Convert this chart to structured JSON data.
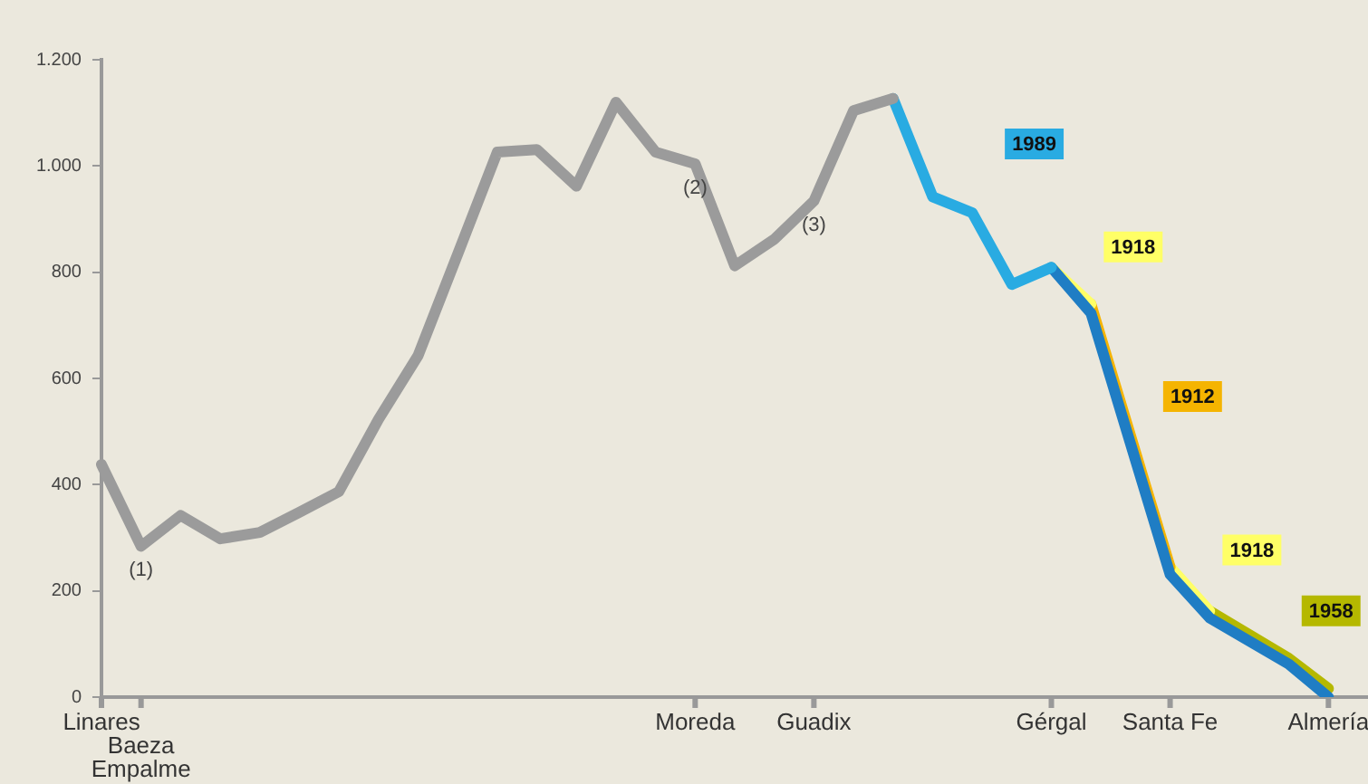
{
  "chart_data": {
    "type": "line",
    "ylim": [
      0,
      1200
    ],
    "categories": [
      "Linares",
      "Baeza\nEmpalme",
      null,
      null,
      null,
      null,
      null,
      null,
      null,
      null,
      null,
      null,
      null,
      null,
      null,
      "Moreda",
      null,
      null,
      "Guadix",
      null,
      null,
      null,
      null,
      null,
      "Gérgal",
      null,
      null,
      "Santa Fe",
      null,
      null,
      null,
      "Almería",
      null
    ],
    "yticks": [
      0,
      200,
      400,
      600,
      800,
      {
        "value": 1000,
        "label": "1.000"
      },
      {
        "value": 1200,
        "label": "1.200"
      }
    ],
    "grid": false,
    "legend": false,
    "marker": "none",
    "line_style": "solid",
    "series": [
      {
        "color": "#9b9b9b",
        "values": [
          438,
          284,
          342,
          298,
          310,
          348,
          387,
          523,
          643,
          834,
          1026,
          1031,
          962,
          1120,
          1026,
          1004,
          812,
          862,
          934,
          1104,
          1127,
          null,
          null,
          null,
          null,
          null,
          null,
          null,
          null,
          null,
          null,
          null,
          null
        ]
      },
      {
        "name": "1989",
        "color": "#29abe2",
        "values": [
          null,
          null,
          null,
          null,
          null,
          null,
          null,
          null,
          null,
          null,
          null,
          null,
          null,
          null,
          null,
          null,
          null,
          null,
          null,
          null,
          1127,
          942,
          912,
          777,
          809,
          null,
          null,
          null,
          null,
          null,
          null,
          null,
          null
        ]
      },
      {
        "color": "#1f7dc4",
        "values": [
          null,
          null,
          null,
          null,
          null,
          null,
          null,
          null,
          null,
          null,
          null,
          null,
          null,
          null,
          null,
          null,
          null,
          null,
          null,
          null,
          null,
          null,
          null,
          null,
          809,
          723,
          null,
          231,
          149,
          null,
          62,
          0,
          null
        ]
      },
      {
        "name": "1918",
        "color": "#ffff66",
        "values": [
          null,
          null,
          null,
          null,
          null,
          null,
          null,
          null,
          null,
          null,
          null,
          null,
          null,
          null,
          null,
          null,
          null,
          null,
          null,
          null,
          null,
          null,
          null,
          null,
          809,
          740,
          null,
          null,
          null,
          null,
          null,
          null,
          null
        ]
      },
      {
        "name": "1912",
        "color": "#f5b400",
        "values": [
          null,
          null,
          null,
          null,
          null,
          null,
          null,
          null,
          null,
          null,
          null,
          null,
          null,
          null,
          null,
          null,
          null,
          null,
          null,
          null,
          null,
          null,
          null,
          null,
          null,
          740,
          null,
          245,
          null,
          null,
          null,
          null,
          null
        ]
      },
      {
        "name": "1918",
        "color": "#ffff66",
        "values": [
          null,
          null,
          null,
          null,
          null,
          null,
          null,
          null,
          null,
          null,
          null,
          null,
          null,
          null,
          null,
          null,
          null,
          null,
          null,
          null,
          null,
          null,
          null,
          null,
          null,
          null,
          null,
          245,
          162,
          null,
          null,
          null,
          null
        ]
      },
      {
        "name": "1958",
        "color": "#b5b800",
        "values": [
          null,
          null,
          null,
          null,
          null,
          null,
          null,
          null,
          null,
          null,
          null,
          null,
          null,
          null,
          null,
          null,
          null,
          null,
          null,
          null,
          null,
          null,
          null,
          null,
          null,
          null,
          null,
          null,
          162,
          null,
          73,
          16,
          null
        ]
      }
    ],
    "annotations": [
      {
        "text": "(1)",
        "y": 284
      },
      {
        "text": "(2)",
        "y": 1004
      },
      {
        "text": "(3)",
        "y": 934
      }
    ]
  }
}
